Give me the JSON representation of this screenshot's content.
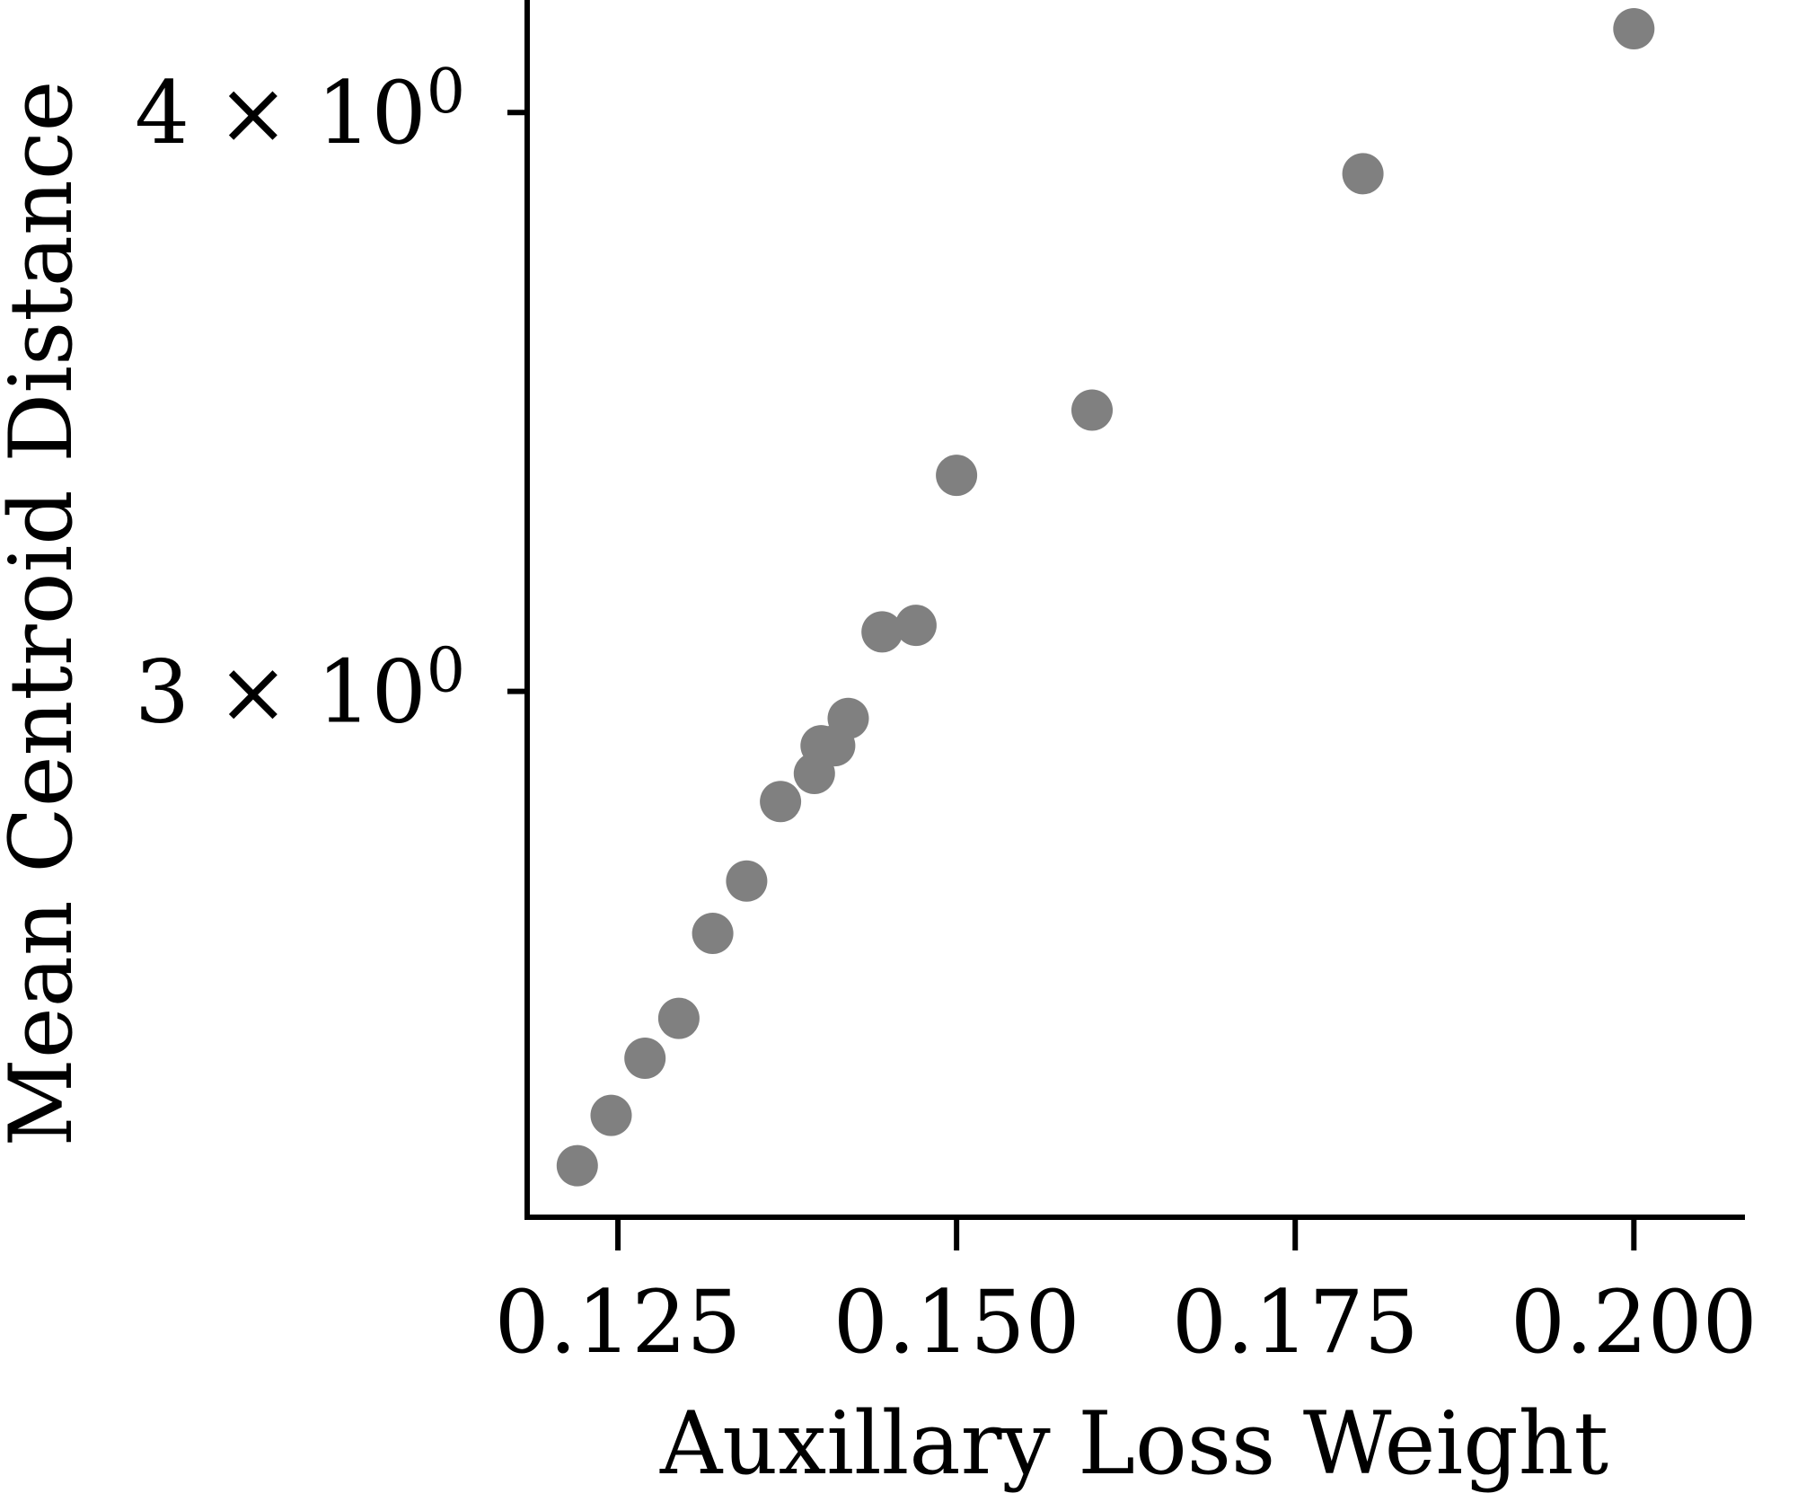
{
  "chart_data": {
    "type": "scatter",
    "title": "",
    "xlabel": "Auxillary Loss Weight",
    "ylabel": "Mean Centroid Distance",
    "xscale": "linear",
    "yscale": "log",
    "xlim": [
      0.1183,
      0.2082
    ],
    "ylim": [
      2.31,
      4.23
    ],
    "grid": false,
    "x_ticks": [
      0.125,
      0.15,
      0.175,
      0.2
    ],
    "x_tick_labels": [
      "0.125",
      "0.150",
      "0.175",
      "0.200"
    ],
    "y_ticks": [
      3,
      4
    ],
    "y_tick_labels": [
      {
        "mantissa": "3",
        "times": "×",
        "base": "10",
        "exponent": "0"
      },
      {
        "mantissa": "4",
        "times": "×",
        "base": "10",
        "exponent": "0"
      }
    ],
    "marker_color": "#808080",
    "points": [
      {
        "x": 0.122,
        "y": 2.37
      },
      {
        "x": 0.1245,
        "y": 2.43
      },
      {
        "x": 0.127,
        "y": 2.5
      },
      {
        "x": 0.1295,
        "y": 2.55
      },
      {
        "x": 0.132,
        "y": 2.66
      },
      {
        "x": 0.1345,
        "y": 2.73
      },
      {
        "x": 0.137,
        "y": 2.84
      },
      {
        "x": 0.1395,
        "y": 2.88
      },
      {
        "x": 0.14,
        "y": 2.92
      },
      {
        "x": 0.141,
        "y": 2.92
      },
      {
        "x": 0.142,
        "y": 2.96
      },
      {
        "x": 0.1445,
        "y": 3.09
      },
      {
        "x": 0.147,
        "y": 3.1
      },
      {
        "x": 0.15,
        "y": 3.34
      },
      {
        "x": 0.16,
        "y": 3.45
      },
      {
        "x": 0.18,
        "y": 3.88
      },
      {
        "x": 0.2,
        "y": 4.17
      }
    ]
  }
}
